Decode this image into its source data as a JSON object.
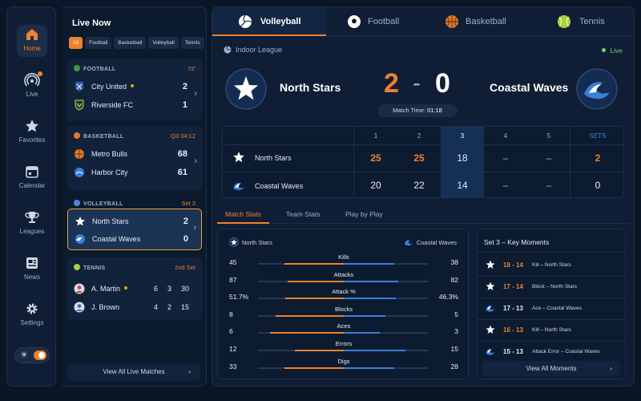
{
  "nav": {
    "items": [
      {
        "label": "Home",
        "icon": "home-icon"
      },
      {
        "label": "Live",
        "icon": "live-icon"
      },
      {
        "label": "Favorites",
        "icon": "star-icon"
      },
      {
        "label": "Calendar",
        "icon": "calendar-icon"
      },
      {
        "label": "Leagues",
        "icon": "trophy-icon"
      },
      {
        "label": "News",
        "icon": "news-icon"
      },
      {
        "label": "Settings",
        "icon": "gear-icon"
      }
    ]
  },
  "live_now": {
    "title": "Live Now",
    "filters": [
      "All",
      "Football",
      "Basketball",
      "Volleyball",
      "Tennis"
    ],
    "cards": [
      {
        "sport": "FOOTBALL",
        "status": "72'",
        "teams": [
          {
            "name": "City United",
            "score": "2",
            "serving": true
          },
          {
            "name": "Riverside FC",
            "score": "1"
          }
        ]
      },
      {
        "sport": "BASKETBALL",
        "status": "Q3 04:12",
        "teams": [
          {
            "name": "Metro Bulls",
            "score": "68"
          },
          {
            "name": "Harbor City",
            "score": "61"
          }
        ]
      },
      {
        "sport": "VOLLEYBALL",
        "status": "Set 3",
        "teams": [
          {
            "name": "North Stars",
            "score": "2"
          },
          {
            "name": "Coastal Waves",
            "score": "0"
          }
        ]
      },
      {
        "sport": "TENNIS",
        "status": "2nd Set",
        "teams": [
          {
            "name": "A. Martin",
            "sets": [
              "6",
              "3",
              "30"
            ],
            "serving": true
          },
          {
            "name": "J. Brown",
            "sets": [
              "4",
              "2",
              "15"
            ]
          }
        ]
      }
    ],
    "view_all": "View All Live Matches"
  },
  "sport_tabs": [
    "Volleyball",
    "Football",
    "Basketball",
    "Tennis"
  ],
  "match": {
    "league": "Indoor League",
    "status": "Live",
    "home": "North Stars",
    "away": "Coastal Waves",
    "score_home": "2",
    "score_sep": "-",
    "score_away": "0",
    "match_time_label": "Match Time:",
    "match_time": "01:18"
  },
  "set_table": {
    "headers": [
      "1",
      "2",
      "3",
      "4",
      "5",
      "SETS"
    ],
    "rows": [
      {
        "team": "North Stars",
        "cells": [
          "25",
          "25",
          "18",
          "–",
          "–",
          "2"
        ]
      },
      {
        "team": "Coastal Waves",
        "cells": [
          "20",
          "22",
          "14",
          "–",
          "–",
          "0"
        ]
      }
    ]
  },
  "sub_tabs": [
    "Match Stats",
    "Team Stats",
    "Play by Play"
  ],
  "stats": {
    "home": "North Stars",
    "away": "Coastal Waves",
    "rows": [
      {
        "label": "Kills",
        "home": "45",
        "away": "38",
        "home_share": 0.54
      },
      {
        "label": "Attacks",
        "home": "87",
        "away": "82",
        "home_share": 0.51
      },
      {
        "label": "Attack %",
        "home": "51.7%",
        "away": "46.3%",
        "home_share": 0.53
      },
      {
        "label": "Blocks",
        "home": "8",
        "away": "5",
        "home_share": 0.62
      },
      {
        "label": "Aces",
        "home": "6",
        "away": "3",
        "home_share": 0.67
      },
      {
        "label": "Errors",
        "home": "12",
        "away": "15",
        "home_share": 0.44
      },
      {
        "label": "Digs",
        "home": "33",
        "away": "28",
        "home_share": 0.54
      }
    ]
  },
  "moments": {
    "title": "Set 3 – Key Moments",
    "items": [
      {
        "score": "18 - 14",
        "desc": "Kill – North Stars",
        "team": "home"
      },
      {
        "score": "17 - 14",
        "desc": "Block – North Stars",
        "team": "home"
      },
      {
        "score": "17 - 13",
        "desc": "Ace – Coastal Waves",
        "team": "away"
      },
      {
        "score": "16 - 13",
        "desc": "Kill – North Stars",
        "team": "home"
      },
      {
        "score": "15 - 13",
        "desc": "Attack Error – Coastal Waves",
        "team": "away"
      }
    ],
    "view_all": "View All Moments"
  },
  "colors": {
    "accent": "#f0812b",
    "away": "#3a7fd9",
    "live": "#7ad16a"
  }
}
